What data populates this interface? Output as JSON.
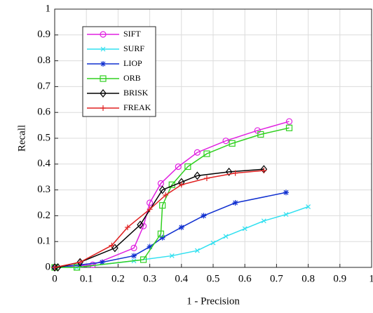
{
  "chart_data": {
    "type": "line",
    "xlabel": "1 - Precision",
    "ylabel": "Recall",
    "xlim": [
      0,
      1
    ],
    "ylim": [
      0,
      1
    ],
    "xticks": [
      0,
      0.1,
      0.2,
      0.3,
      0.4,
      0.5,
      0.6,
      0.7,
      0.8,
      0.9,
      1
    ],
    "yticks": [
      0,
      0.1,
      0.2,
      0.3,
      0.4,
      0.5,
      0.6,
      0.7,
      0.8,
      0.9,
      1
    ],
    "grid": true,
    "legend": "upper left",
    "series": [
      {
        "name": "SIFT",
        "color": "#e020e0",
        "marker": "circle",
        "x": [
          0,
          0.12,
          0.25,
          0.28,
          0.3,
          0.335,
          0.39,
          0.45,
          0.54,
          0.64,
          0.74
        ],
        "values": [
          0,
          0.01,
          0.075,
          0.16,
          0.25,
          0.325,
          0.39,
          0.445,
          0.49,
          0.53,
          0.565
        ]
      },
      {
        "name": "SURF",
        "color": "#30e0f0",
        "marker": "x",
        "x": [
          0,
          0.07,
          0.25,
          0.37,
          0.45,
          0.5,
          0.54,
          0.6,
          0.66,
          0.73,
          0.8
        ],
        "values": [
          0,
          0,
          0.025,
          0.045,
          0.065,
          0.095,
          0.12,
          0.15,
          0.18,
          0.205,
          0.235
        ]
      },
      {
        "name": "LIOP",
        "color": "#1030d0",
        "marker": "asterisk",
        "x": [
          0,
          0.08,
          0.15,
          0.25,
          0.3,
          0.34,
          0.4,
          0.47,
          0.57,
          0.73
        ],
        "values": [
          0,
          0.01,
          0.02,
          0.045,
          0.08,
          0.115,
          0.155,
          0.2,
          0.25,
          0.29
        ]
      },
      {
        "name": "ORB",
        "color": "#30d020",
        "marker": "square",
        "x": [
          0,
          0.07,
          0.28,
          0.335,
          0.34,
          0.37,
          0.42,
          0.48,
          0.56,
          0.65,
          0.74
        ],
        "values": [
          0,
          0,
          0.03,
          0.13,
          0.24,
          0.32,
          0.39,
          0.44,
          0.48,
          0.515,
          0.54
        ]
      },
      {
        "name": "BRISK",
        "color": "#000000",
        "marker": "diamond",
        "x": [
          0,
          0.01,
          0.08,
          0.19,
          0.27,
          0.34,
          0.4,
          0.45,
          0.55,
          0.66
        ],
        "values": [
          0,
          0,
          0.02,
          0.075,
          0.165,
          0.3,
          0.33,
          0.355,
          0.37,
          0.38
        ]
      },
      {
        "name": "FREAK",
        "color": "#e02020",
        "marker": "plus",
        "x": [
          0,
          0.08,
          0.18,
          0.23,
          0.3,
          0.35,
          0.4,
          0.48,
          0.57,
          0.66
        ],
        "values": [
          0,
          0.02,
          0.085,
          0.155,
          0.225,
          0.28,
          0.32,
          0.345,
          0.365,
          0.375
        ]
      }
    ]
  }
}
